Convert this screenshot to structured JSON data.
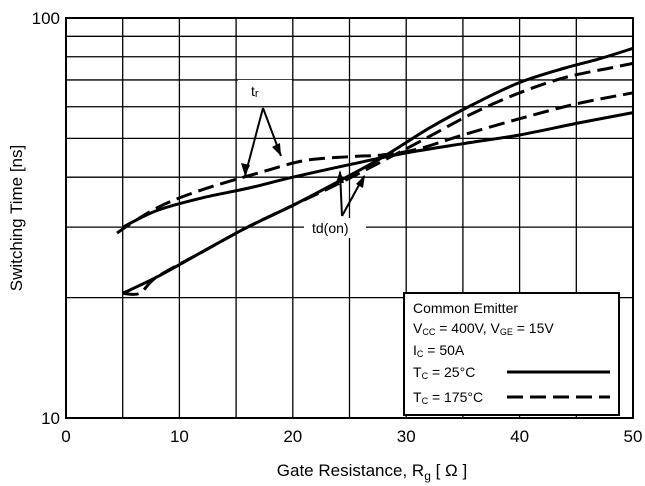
{
  "chart_data": {
    "type": "line",
    "title": "",
    "xlabel": "Gate Resistance, R",
    "xlabel_sub": "g",
    "xlabel_unit": "[ Ω ]",
    "ylabel": "Switching Time [ns]",
    "xlim": [
      0,
      50
    ],
    "ylim": [
      10,
      100
    ],
    "y_scale": "log",
    "grid": true,
    "x_ticks": [
      "0",
      "10",
      "20",
      "30",
      "40",
      "50"
    ],
    "y_ticks": [
      "10",
      "100"
    ],
    "legend": {
      "placement": "bottom-right",
      "title": "Common Emitter",
      "cond1": {
        "v1": "V",
        "v1_sub": "CC",
        "v1_val": " = 400V, V",
        "v2_sub": "GE",
        "v2_val": " = 15V"
      },
      "cond2": {
        "name": "I",
        "sub": "C",
        "val": " = 50A"
      },
      "entries": [
        {
          "name": "T",
          "sub": "C",
          "val": " = 25°C",
          "style": "solid"
        },
        {
          "name": "T",
          "sub": "C",
          "val": " = 175°C",
          "style": "dashed"
        }
      ]
    },
    "annotations": {
      "tr": {
        "text": "tr",
        "main": "t",
        "sub": "r"
      },
      "tdon": {
        "text": "td(on)"
      }
    },
    "series": [
      {
        "key": "tr_25",
        "style": "solid",
        "x": [
          5,
          8,
          12,
          16,
          20,
          25,
          30,
          35,
          40,
          45,
          50
        ],
        "y": [
          30,
          33,
          35.5,
          37.5,
          40,
          43,
          46,
          48.5,
          51,
          54.5,
          58
        ]
      },
      {
        "key": "tr_175",
        "style": "dashed",
        "x": [
          4.5,
          6,
          8,
          10,
          13,
          17,
          21,
          25,
          28,
          31,
          35,
          40,
          45,
          50
        ],
        "y": [
          29,
          31,
          33.5,
          35.5,
          38,
          41,
          44,
          45,
          45.5,
          47,
          51,
          56,
          61,
          65
        ]
      },
      {
        "key": "tdon_25",
        "style": "solid",
        "x": [
          5,
          8,
          12,
          16,
          20,
          24,
          28,
          32,
          36,
          40,
          44,
          47,
          50
        ],
        "y": [
          20.5,
          22.5,
          26,
          30,
          34,
          39,
          45,
          53,
          61,
          69,
          75,
          79,
          84
        ]
      },
      {
        "key": "tdon_175",
        "style": "dashed",
        "x": [
          5,
          6.5,
          8,
          12,
          16,
          20,
          24,
          28,
          32,
          36,
          40,
          44,
          48,
          50
        ],
        "y": [
          20.5,
          20.5,
          22.5,
          26,
          30,
          34,
          38.5,
          44,
          50.5,
          58,
          65,
          71,
          75,
          77
        ]
      }
    ]
  }
}
